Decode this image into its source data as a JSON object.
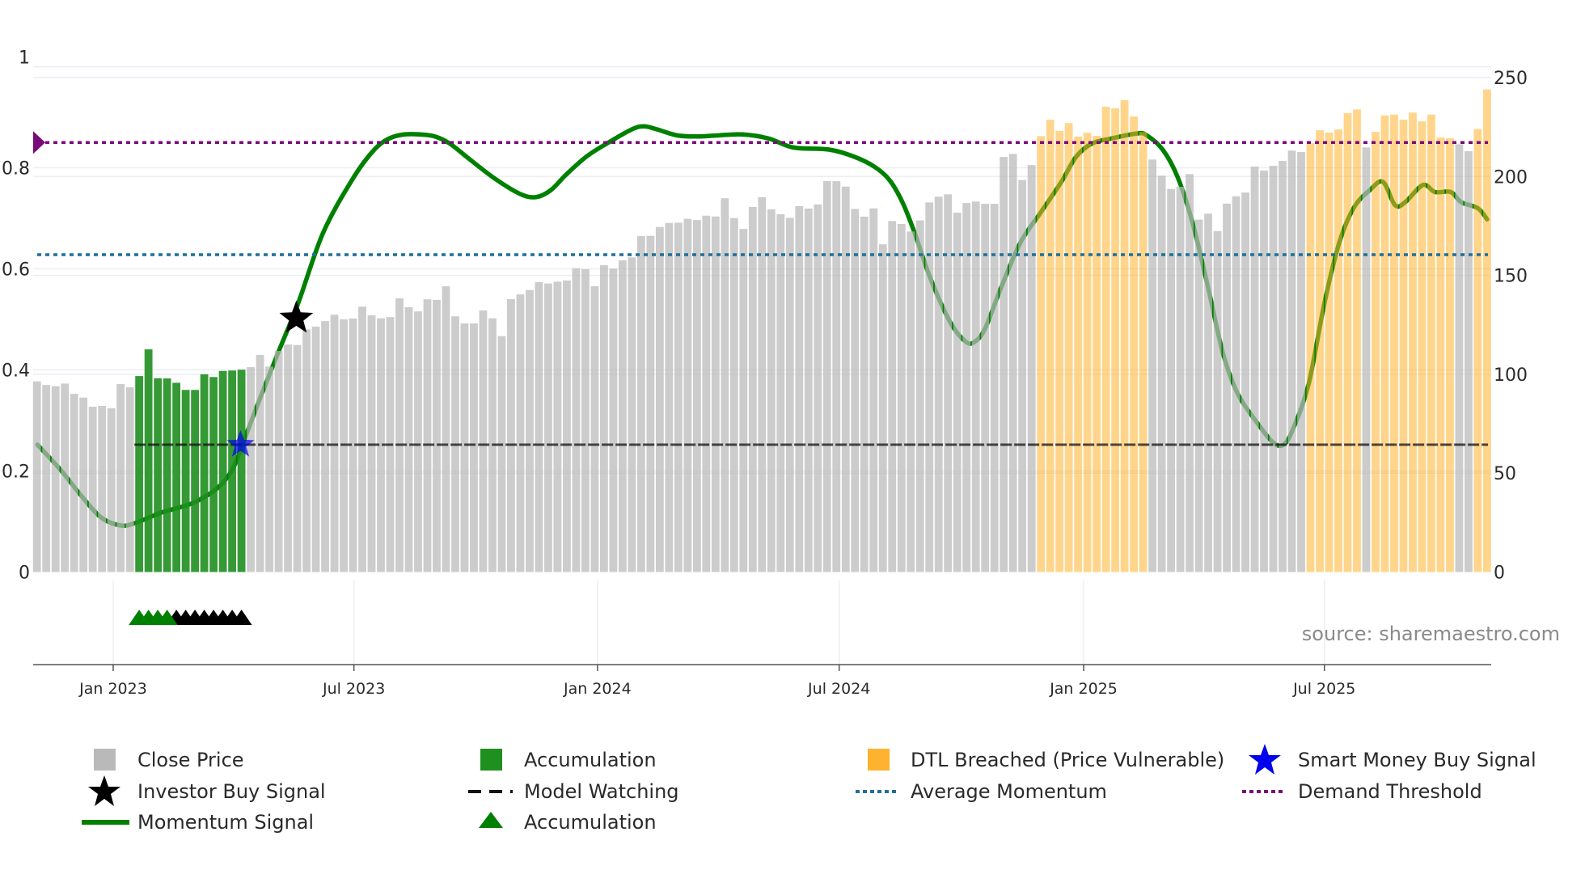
{
  "chart_data": {
    "type": "bar+line",
    "x_unit": "week index from first bar (weekly bars, Nov 2022 – Oct 2025)",
    "x_ticks": [
      {
        "label": "Jan 2023",
        "x": 8.2
      },
      {
        "label": "Jul 2023",
        "x": 34.1
      },
      {
        "label": "Jan 2024",
        "x": 60.3
      },
      {
        "label": "Jul 2024",
        "x": 86.3
      },
      {
        "label": "Jan 2025",
        "x": 112.6
      },
      {
        "label": "Jul 2025",
        "x": 138.5
      }
    ],
    "left_axis": {
      "range": [
        0,
        1
      ],
      "ticks": [
        "0",
        "0.2",
        "0.4",
        "0.6",
        "0.8",
        "1"
      ],
      "tick_values": [
        0,
        0.2,
        0.4,
        0.6,
        0.8,
        1
      ]
    },
    "right_axis": {
      "range": [
        0,
        250
      ],
      "ticks": [
        "0",
        "50",
        "100",
        "150",
        "200",
        "250"
      ],
      "tick_values": [
        0,
        50,
        100,
        150,
        200,
        250
      ]
    },
    "close_price": [
      96.4,
      94.6,
      94.0,
      95.3,
      90.1,
      88.2,
      83.6,
      84.0,
      82.8,
      95.1,
      93.4,
      99.1,
      112.6,
      98.0,
      97.9,
      95.7,
      92.1,
      92.1,
      100.0,
      98.6,
      101.7,
      101.9,
      102.3,
      103.6,
      109.8,
      103.9,
      111.8,
      115.0,
      114.8,
      122.7,
      124.1,
      126.9,
      130.1,
      127.8,
      128.2,
      134.2,
      129.8,
      128.3,
      128.9,
      138.4,
      133.9,
      131.8,
      137.9,
      137.6,
      144.5,
      129.3,
      125.7,
      125.7,
      132.3,
      128.3,
      119.3,
      138.0,
      140.4,
      142.6,
      146.6,
      145.9,
      146.8,
      147.4,
      153.6,
      153.1,
      144.5,
      155.2,
      153.4,
      157.6,
      159.1,
      169.9,
      170.0,
      174.5,
      176.5,
      176.6,
      178.6,
      178.0,
      180.2,
      179.8,
      189.0,
      179.0,
      173.5,
      184.6,
      189.5,
      183.4,
      180.9,
      179.1,
      185.0,
      183.8,
      185.9,
      197.7,
      197.6,
      194.9,
      183.6,
      179.7,
      183.9,
      165.7,
      177.5,
      176.0,
      172.2,
      177.8,
      186.9,
      189.8,
      191.0,
      181.7,
      186.6,
      187.3,
      186.2,
      186.2,
      209.9,
      211.4,
      198.2,
      205.8,
      220.4,
      228.7,
      223.1,
      227.0,
      220.2,
      222.1,
      220.6,
      235.3,
      234.5,
      238.6,
      230.4,
      222.5,
      208.6,
      200.4,
      193.7,
      194.8,
      201.2,
      178.2,
      181.2,
      172.4,
      186.3,
      190.0,
      191.9,
      205.0,
      203.0,
      205.4,
      207.9,
      213.1,
      212.4,
      216.8,
      223.4,
      222.2,
      223.8,
      232.0,
      233.9,
      214.7,
      222.6,
      230.9,
      231.3,
      228.7,
      232.3,
      227.9,
      231.3,
      219.7,
      219.3,
      216.3,
      212.8,
      224.0,
      244.0
    ],
    "accumulation_ranges": [
      [
        11,
        22
      ]
    ],
    "dtl_breached_ranges": [
      [
        108,
        119
      ],
      [
        137,
        142
      ],
      [
        144,
        152
      ],
      [
        155,
        156
      ]
    ],
    "momentum_signal": [
      [
        0.05,
        0.252
      ],
      [
        2.55,
        0.202
      ],
      [
        4.72,
        0.152
      ],
      [
        6.9,
        0.108
      ],
      [
        9.07,
        0.092
      ],
      [
        10.7,
        0.098
      ],
      [
        13.43,
        0.118
      ],
      [
        16.69,
        0.136
      ],
      [
        19.4,
        0.166
      ],
      [
        21.0,
        0.202
      ],
      [
        22.1,
        0.252
      ],
      [
        23.75,
        0.332
      ],
      [
        25.9,
        0.432
      ],
      [
        28.1,
        0.532
      ],
      [
        30.8,
        0.672
      ],
      [
        34.1,
        0.782
      ],
      [
        36.3,
        0.836
      ],
      [
        37.9,
        0.858
      ],
      [
        39.5,
        0.866
      ],
      [
        41.2,
        0.866
      ],
      [
        42.8,
        0.862
      ],
      [
        44.4,
        0.848
      ],
      [
        46.6,
        0.816
      ],
      [
        49.3,
        0.778
      ],
      [
        52.0,
        0.748
      ],
      [
        53.7,
        0.742
      ],
      [
        55.3,
        0.756
      ],
      [
        56.9,
        0.786
      ],
      [
        59.1,
        0.822
      ],
      [
        61.3,
        0.848
      ],
      [
        64.0,
        0.876
      ],
      [
        65.3,
        0.882
      ],
      [
        66.7,
        0.876
      ],
      [
        68.9,
        0.864
      ],
      [
        71.1,
        0.862
      ],
      [
        73.2,
        0.864
      ],
      [
        75.9,
        0.866
      ],
      [
        78.7,
        0.858
      ],
      [
        81.4,
        0.84
      ],
      [
        85.2,
        0.836
      ],
      [
        87.9,
        0.822
      ],
      [
        90.1,
        0.802
      ],
      [
        91.7,
        0.776
      ],
      [
        93.1,
        0.732
      ],
      [
        94.4,
        0.672
      ],
      [
        96.1,
        0.582
      ],
      [
        98.2,
        0.496
      ],
      [
        99.9,
        0.456
      ],
      [
        100.9,
        0.456
      ],
      [
        102.0,
        0.482
      ],
      [
        103.7,
        0.562
      ],
      [
        105.8,
        0.652
      ],
      [
        108.0,
        0.712
      ],
      [
        110.2,
        0.772
      ],
      [
        111.8,
        0.822
      ],
      [
        113.5,
        0.848
      ],
      [
        115.6,
        0.858
      ],
      [
        118.4,
        0.868
      ],
      [
        119.4,
        0.864
      ],
      [
        121.1,
        0.836
      ],
      [
        122.7,
        0.782
      ],
      [
        124.3,
        0.692
      ],
      [
        126.0,
        0.562
      ],
      [
        127.6,
        0.432
      ],
      [
        129.2,
        0.352
      ],
      [
        131.4,
        0.292
      ],
      [
        133.0,
        0.256
      ],
      [
        134.1,
        0.252
      ],
      [
        135.1,
        0.282
      ],
      [
        136.8,
        0.372
      ],
      [
        138.5,
        0.532
      ],
      [
        140.1,
        0.652
      ],
      [
        141.7,
        0.722
      ],
      [
        143.4,
        0.756
      ],
      [
        144.8,
        0.772
      ],
      [
        146.1,
        0.726
      ],
      [
        147.2,
        0.732
      ],
      [
        149.1,
        0.766
      ],
      [
        150.4,
        0.752
      ],
      [
        152.1,
        0.752
      ],
      [
        153.2,
        0.732
      ],
      [
        155.0,
        0.72
      ],
      [
        156.0,
        0.698
      ]
    ],
    "demand_threshold": 0.85,
    "average_momentum": 0.628,
    "model_watching": {
      "value": 0.252,
      "from_x": 11
    },
    "investor_buy_signal": [
      {
        "x": 27.9,
        "y": 0.502
      }
    ],
    "smart_money_buy_signal": [
      {
        "x": 21.9,
        "y": 0.252
      }
    ],
    "accumulation_markers": {
      "green": [
        11,
        12,
        13,
        14
      ],
      "black": [
        15,
        16,
        17,
        18,
        19,
        20,
        21,
        22
      ]
    },
    "legend_placement": "bottom"
  },
  "source_text": "source: sharemaestro.com",
  "legend": {
    "close_price": "Close Price",
    "accumulation_bar": "Accumulation",
    "dtl_breached": "DTL Breached (Price Vulnerable)",
    "smart_money": "Smart Money Buy Signal",
    "investor_buy": "Investor Buy Signal",
    "model_watching": "Model Watching",
    "average_momentum": "Average Momentum",
    "demand_threshold": "Demand Threshold",
    "momentum_signal": "Momentum Signal",
    "accumulation_marker": "Accumulation"
  },
  "colors": {
    "close": "#b9b9b9",
    "accumulation": "#1f8f1f",
    "dtl": "#ffb22e",
    "momentum": "#008000",
    "demand": "#7a0a7a",
    "avg_momentum": "#1f6f9a",
    "model": "#111111",
    "smart_money": "#0000ee",
    "investor": "#000000"
  }
}
